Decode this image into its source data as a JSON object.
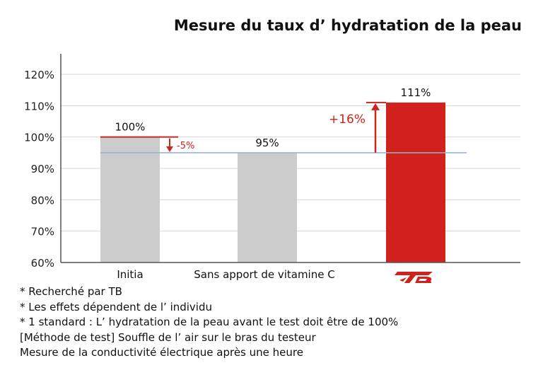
{
  "chart_data": {
    "type": "bar",
    "title": "Mesure du taux d’ hydratation de la peau",
    "categories": [
      "Initia",
      "Sans apport de vitamine C",
      "TB logo"
    ],
    "values": [
      100,
      95,
      111
    ],
    "data_labels": [
      "100%",
      "95%",
      "111%"
    ],
    "yticks": [
      "60%",
      "70%",
      "80%",
      "90%",
      "100%",
      "110%",
      "120%"
    ],
    "ylim": [
      60,
      120
    ],
    "grid": true,
    "reference_line": 95,
    "annotations": [
      {
        "text": "-5%",
        "from": 100,
        "to": 95,
        "color": "#c8261e"
      },
      {
        "text": "+16%",
        "from": 95,
        "to": 111,
        "color": "#c8261e"
      }
    ],
    "colors": {
      "gray_bar": "#cccccc",
      "highlight_bar": "#d0211c",
      "reference": "#8fb0d6",
      "accent": "#c8261e"
    }
  },
  "notes": [
    "* Recherché par TB",
    "* Les effets dépendent de l’ individu",
    "* 1 standard : L’ hydratation de la peau avant le test doit être de 100%",
    "[Méthode de test] Souffle de l’ air sur le bras du testeur",
    "Mesure de la conductivité électrique après une heure"
  ],
  "logo": {
    "icon": "tb-brand-logo-icon",
    "color": "#d0211c"
  }
}
